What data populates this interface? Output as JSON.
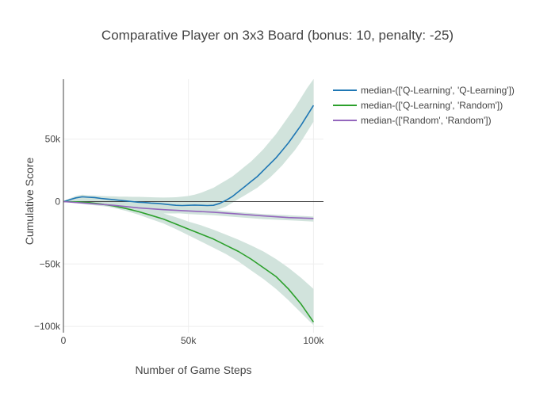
{
  "chart_data": {
    "type": "line",
    "title": "Comparative Player on 3x3 Board (bonus: 10, penalty: -25)",
    "xlabel": "Number of Game Steps",
    "ylabel": "Cumulative Score",
    "xlim": [
      0,
      104000
    ],
    "ylim": [
      -105000,
      98000
    ],
    "x_ticks": [
      {
        "value": 0,
        "label": "0"
      },
      {
        "value": 50000,
        "label": "50k"
      },
      {
        "value": 100000,
        "label": "100k"
      }
    ],
    "y_ticks": [
      {
        "value": 50000,
        "label": "50k"
      },
      {
        "value": 0,
        "label": "0"
      },
      {
        "value": -50000,
        "label": "−50k"
      },
      {
        "value": -100000,
        "label": "−100k"
      }
    ],
    "grid": true,
    "zero_line": true,
    "legend_position": "top-right outside",
    "band_color": "#cfe1da",
    "series": [
      {
        "name": "median-(['Q-Learning', 'Q-Learning'])",
        "color": "#1f77b4",
        "x": [
          0,
          2500,
          5000,
          7500,
          10000,
          12500,
          15000,
          17500,
          20000,
          22500,
          25000,
          27500,
          30000,
          32500,
          35000,
          37500,
          40000,
          42500,
          45000,
          47500,
          50000,
          52500,
          55000,
          57500,
          60000,
          62500,
          65000,
          67500,
          70000,
          72500,
          75000,
          77500,
          80000,
          82500,
          85000,
          87500,
          90000,
          92500,
          95000,
          97500,
          100000
        ],
        "values": [
          0,
          1500,
          3000,
          3800,
          3500,
          3200,
          2500,
          2000,
          1500,
          1000,
          500,
          0,
          -500,
          -800,
          -1200,
          -1500,
          -2000,
          -2500,
          -3000,
          -3200,
          -3000,
          -2800,
          -3000,
          -3200,
          -3000,
          -1500,
          1000,
          4000,
          8000,
          12000,
          16000,
          20000,
          25000,
          30000,
          35000,
          41000,
          47000,
          54000,
          61000,
          69000,
          77000
        ],
        "band_lower": [
          0,
          0,
          0,
          0,
          0,
          -500,
          -1500,
          -2500,
          -3500,
          -4500,
          -5500,
          -6500,
          -7500,
          -8500,
          -9000,
          -9500,
          -9500,
          -9500,
          -9500,
          -9000,
          -8500,
          -8500,
          -8500,
          -8000,
          -7500,
          -6000,
          -4000,
          -1000,
          2000,
          5000,
          8000,
          11000,
          15000,
          19000,
          24000,
          29000,
          35000,
          41000,
          48000,
          56000,
          64000
        ],
        "band_upper": [
          0,
          2500,
          4500,
          5500,
          5000,
          4800,
          4500,
          4300,
          4200,
          4000,
          3900,
          3800,
          3800,
          3700,
          3500,
          3300,
          3200,
          3300,
          3500,
          4000,
          4500,
          5500,
          7000,
          9000,
          11000,
          14000,
          17000,
          20000,
          24000,
          28000,
          32000,
          37000,
          42000,
          48000,
          54000,
          61000,
          68000,
          75000,
          83000,
          91000,
          98000
        ]
      },
      {
        "name": "median-(['Q-Learning', 'Random'])",
        "color": "#2ca02c",
        "x": [
          0,
          5000,
          10000,
          15000,
          20000,
          25000,
          30000,
          35000,
          40000,
          45000,
          50000,
          55000,
          60000,
          65000,
          70000,
          75000,
          80000,
          85000,
          90000,
          95000,
          100000
        ],
        "values": [
          0,
          -200,
          -800,
          -2000,
          -3500,
          -5500,
          -8000,
          -11000,
          -14000,
          -18000,
          -22000,
          -26000,
          -30000,
          -35000,
          -40000,
          -46000,
          -53000,
          -60000,
          -70000,
          -82000,
          -96500
        ],
        "band_lower": [
          0,
          -800,
          -1500,
          -3000,
          -5000,
          -7500,
          -10500,
          -14000,
          -17500,
          -22000,
          -27000,
          -32000,
          -37000,
          -42000,
          -48000,
          -55000,
          -62000,
          -70000,
          -79000,
          -89000,
          -99000
        ],
        "band_upper": [
          0,
          500,
          500,
          0,
          -1000,
          -2500,
          -4500,
          -7000,
          -9500,
          -12500,
          -16000,
          -19000,
          -22500,
          -26500,
          -30500,
          -35000,
          -40000,
          -46000,
          -53000,
          -61000,
          -70000
        ]
      },
      {
        "name": "median-(['Random', 'Random'])",
        "color": "#9467bd",
        "x": [
          0,
          10000,
          20000,
          30000,
          40000,
          50000,
          60000,
          70000,
          80000,
          90000,
          100000
        ],
        "values": [
          0,
          -1500,
          -3000,
          -5000,
          -6500,
          -7500,
          -8500,
          -10000,
          -11500,
          -12800,
          -13500
        ],
        "band_lower": [
          0,
          -2500,
          -4500,
          -7000,
          -8500,
          -10000,
          -11000,
          -12500,
          -14000,
          -15000,
          -16000
        ],
        "band_upper": [
          0,
          2500,
          1000,
          -1500,
          -3500,
          -5000,
          -6500,
          -8500,
          -10000,
          -11000,
          -12000
        ]
      }
    ]
  }
}
